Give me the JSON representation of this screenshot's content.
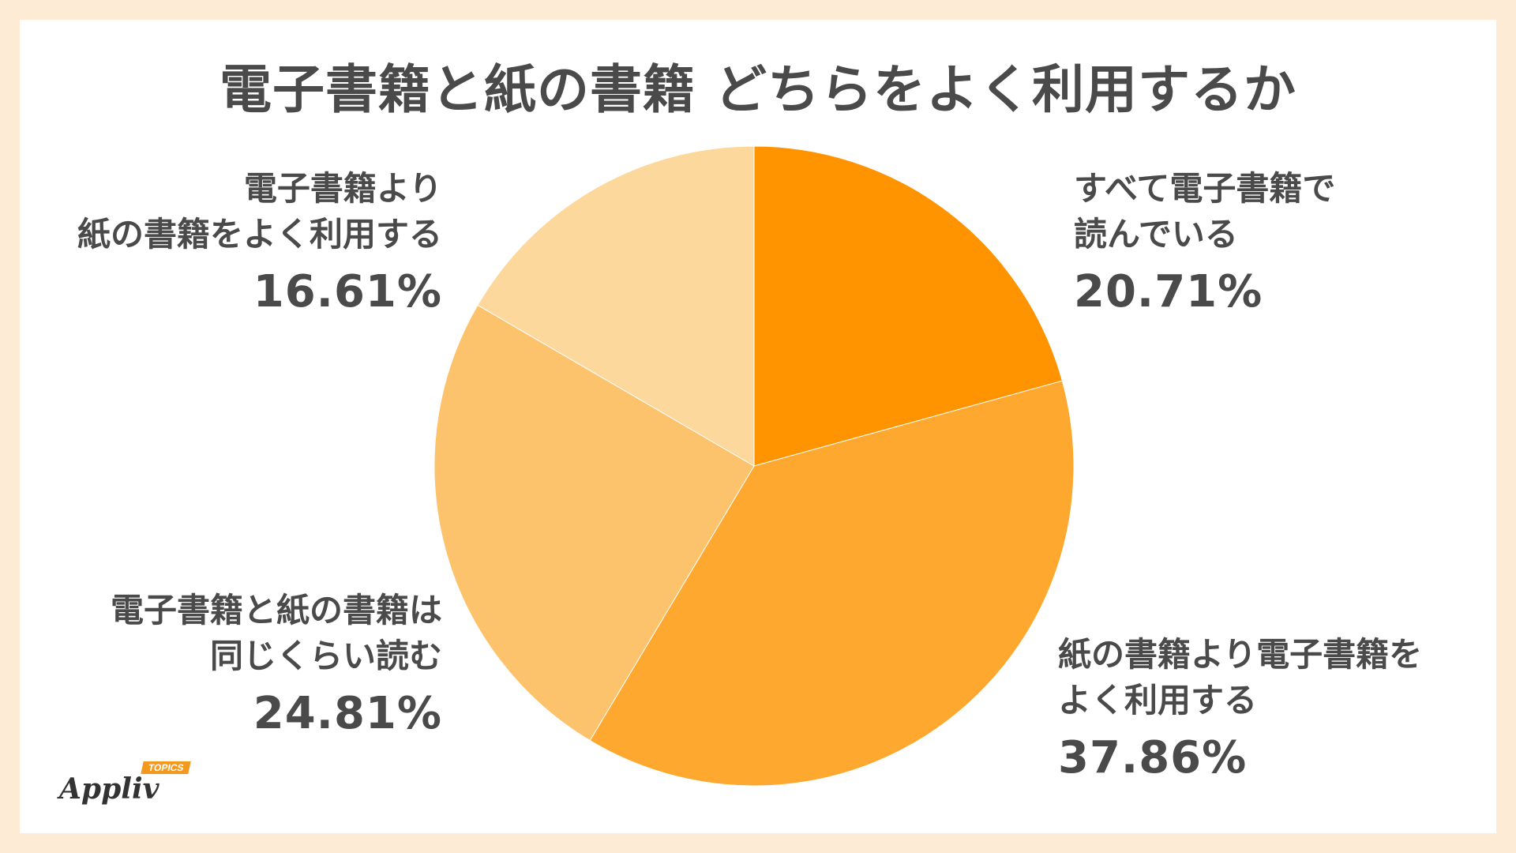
{
  "chart_data": {
    "type": "pie",
    "title": "電子書籍と紙の書籍 どちらをよく利用するか",
    "slices": [
      {
        "label_lines": [
          "すべて電子書籍で",
          "読んでいる"
        ],
        "percent_text": "20.71%",
        "value": 20.71,
        "color": "#ff9400"
      },
      {
        "label_lines": [
          "紙の書籍より電子書籍を",
          "よく利用する"
        ],
        "percent_text": "37.86%",
        "value": 37.86,
        "color": "#fea82f"
      },
      {
        "label_lines": [
          "電子書籍と紙の書籍は",
          "同じくらい読む"
        ],
        "percent_text": "24.81%",
        "value": 24.81,
        "color": "#fdc36c"
      },
      {
        "label_lines": [
          "電子書籍より",
          "紙の書籍をよく利用する"
        ],
        "percent_text": "16.61%",
        "value": 16.61,
        "color": "#fdd89d"
      }
    ]
  },
  "logo": {
    "text": "Appliv",
    "badge": "TOPICS"
  }
}
